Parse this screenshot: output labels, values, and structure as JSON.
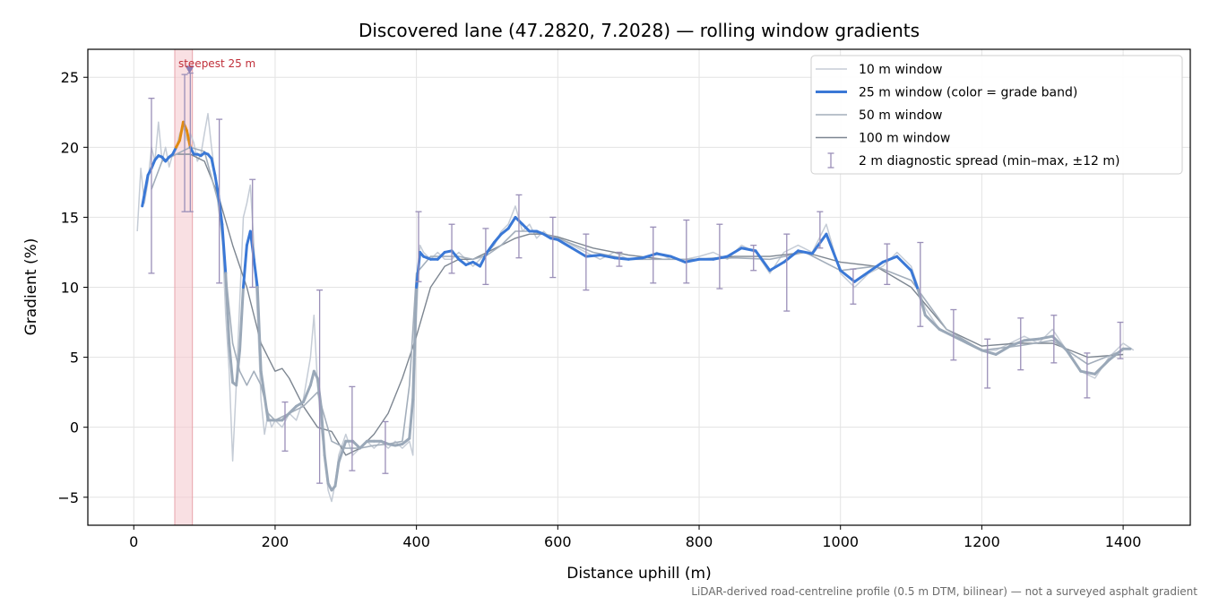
{
  "chart_data": {
    "type": "line",
    "title": "Discovered lane (47.2820, 7.2028) — rolling window gradients",
    "xlabel": "Distance uphill (m)",
    "ylabel": "Gradient (%)",
    "xlim": [
      -65,
      1495
    ],
    "ylim": [
      -7,
      27
    ],
    "x_ticks": [
      0,
      200,
      400,
      600,
      800,
      1000,
      1200,
      1400
    ],
    "y_ticks": [
      -5,
      0,
      5,
      10,
      15,
      20,
      25
    ],
    "x_tick_labels": [
      "0",
      "200",
      "400",
      "600",
      "800",
      "1000",
      "1200",
      "1400"
    ],
    "y_tick_labels": [
      "−5",
      "0",
      "5",
      "10",
      "15",
      "20",
      "25"
    ],
    "grid": true,
    "legend_position": "top-right",
    "footnote": "LiDAR-derived road-centreline profile (0.5 m DTM, bilinear) — not a surveyed asphalt gradient",
    "colors": {
      "w10": "#c5ccd6",
      "w25_blue": "#3a78d6",
      "w25_orange": "#e08a12",
      "w25_gray": "#9aa8b8",
      "w50": "#a3aebb",
      "w100": "#7d8691",
      "errorbar": "#9a8fb8",
      "highlight": "#f4c7cc",
      "annotation": "#c0303a"
    },
    "highlight": {
      "x_start": 58,
      "x_end": 83,
      "label": "steepest 25 m",
      "marker_x": 79,
      "marker_y": 25.5
    },
    "series": [
      {
        "name": "10 m window",
        "key": "w10",
        "x": [
          5,
          10,
          15,
          20,
          25,
          30,
          35,
          40,
          45,
          50,
          55,
          60,
          65,
          70,
          75,
          80,
          85,
          90,
          95,
          100,
          105,
          110,
          115,
          120,
          125,
          130,
          135,
          140,
          145,
          150,
          155,
          160,
          165,
          170,
          175,
          180,
          185,
          190,
          195,
          200,
          210,
          220,
          230,
          240,
          250,
          255,
          260,
          265,
          270,
          275,
          280,
          285,
          290,
          300,
          310,
          320,
          330,
          340,
          350,
          360,
          370,
          380,
          390,
          395,
          400,
          405,
          410,
          420,
          430,
          440,
          450,
          460,
          470,
          480,
          490,
          500,
          510,
          520,
          530,
          540,
          550,
          560,
          570,
          580,
          590,
          600,
          620,
          640,
          660,
          680,
          700,
          720,
          740,
          760,
          780,
          800,
          820,
          840,
          860,
          880,
          900,
          920,
          940,
          960,
          980,
          1000,
          1020,
          1040,
          1060,
          1080,
          1100,
          1110,
          1120,
          1140,
          1160,
          1180,
          1200,
          1220,
          1240,
          1260,
          1280,
          1300,
          1320,
          1340,
          1360,
          1380,
          1400,
          1415
        ],
        "y": [
          14,
          18.5,
          16,
          17.5,
          20,
          19,
          21.8,
          19,
          20,
          18.6,
          19.5,
          20,
          21,
          21.5,
          20.5,
          21,
          20.3,
          19,
          19.5,
          21,
          22.4,
          20,
          18,
          15.5,
          14,
          8,
          4,
          -2.4,
          3,
          9,
          15,
          16,
          17.3,
          13,
          8,
          2,
          -0.5,
          1,
          0,
          0.5,
          0,
          1,
          0.5,
          2,
          5,
          8,
          3,
          0,
          -2,
          -4.5,
          -5.3,
          -4,
          -2,
          -0.5,
          -2,
          -1.5,
          -1,
          -1.5,
          -1,
          -1.5,
          -1,
          -1.5,
          -1,
          -2,
          8,
          13,
          12.5,
          12,
          12.5,
          12,
          12,
          12.5,
          12,
          11.5,
          12,
          12.5,
          13,
          14,
          14.5,
          15.8,
          14,
          14.5,
          13.5,
          14,
          13.5,
          13.6,
          13,
          12.5,
          12,
          12.5,
          12,
          12,
          12.5,
          12,
          12,
          12.2,
          12.5,
          12,
          13,
          12.5,
          11,
          12.5,
          13,
          12.5,
          14.5,
          11,
          10,
          11,
          11.5,
          12.5,
          11.5,
          10,
          8.5,
          7,
          6.5,
          6,
          5.5,
          5.5,
          6,
          6.5,
          6,
          7,
          5.5,
          4,
          3.5,
          5,
          6,
          5.5
        ]
      },
      {
        "name": "25 m window (color = grade band)",
        "key": "w25",
        "x": [
          12,
          20,
          25,
          30,
          35,
          40,
          45,
          50,
          55,
          60,
          65,
          70,
          75,
          80,
          85,
          90,
          95,
          100,
          105,
          110,
          115,
          120,
          125,
          130,
          135,
          140,
          145,
          150,
          155,
          160,
          165,
          170,
          175,
          180,
          190,
          200,
          210,
          220,
          230,
          240,
          250,
          255,
          260,
          265,
          270,
          275,
          280,
          285,
          290,
          300,
          310,
          320,
          330,
          340,
          350,
          360,
          370,
          380,
          390,
          395,
          400,
          405,
          410,
          420,
          430,
          440,
          450,
          460,
          470,
          480,
          490,
          500,
          510,
          520,
          530,
          540,
          550,
          560,
          570,
          580,
          590,
          600,
          620,
          640,
          660,
          680,
          700,
          720,
          740,
          760,
          780,
          800,
          820,
          840,
          860,
          880,
          900,
          920,
          940,
          960,
          980,
          1000,
          1020,
          1040,
          1060,
          1080,
          1100,
          1110,
          1120,
          1140,
          1160,
          1180,
          1200,
          1220,
          1240,
          1260,
          1280,
          1300,
          1320,
          1340,
          1360,
          1380,
          1400,
          1410
        ],
        "y": [
          15.8,
          18,
          18.5,
          19.1,
          19.4,
          19.3,
          19,
          19.3,
          19.5,
          20,
          20.5,
          21.8,
          21.2,
          20,
          19.5,
          19.5,
          19.4,
          19.6,
          19.5,
          19.2,
          18,
          16.5,
          14.5,
          11,
          6,
          3.2,
          3,
          5.5,
          10,
          13,
          14,
          12,
          10,
          4,
          0.5,
          0.5,
          0.5,
          1,
          1.5,
          1.8,
          3,
          4,
          3.5,
          1.5,
          -2,
          -4,
          -4.5,
          -4.2,
          -2.5,
          -1,
          -1,
          -1.5,
          -1,
          -1,
          -1,
          -1.2,
          -1.3,
          -1.2,
          -0.8,
          2,
          10,
          12.5,
          12.2,
          12,
          12,
          12.5,
          12.6,
          12,
          11.6,
          11.8,
          11.5,
          12.5,
          13.2,
          13.8,
          14.2,
          15,
          14.5,
          14,
          14,
          13.8,
          13.5,
          13.4,
          12.8,
          12.2,
          12.3,
          12.1,
          12,
          12.1,
          12.4,
          12.2,
          11.8,
          12,
          12,
          12.2,
          12.8,
          12.6,
          11.2,
          11.8,
          12.6,
          12.4,
          13.8,
          11.2,
          10.4,
          11.1,
          11.8,
          12.2,
          11.2,
          9.8,
          8,
          7,
          6.5,
          6,
          5.5,
          5.2,
          5.8,
          6.2,
          6.3,
          6.5,
          5.5,
          4,
          3.8,
          4.8,
          5.6,
          5.6
        ]
      },
      {
        "name": "50 m window",
        "key": "w50",
        "x": [
          25,
          40,
          60,
          80,
          100,
          120,
          130,
          140,
          150,
          160,
          170,
          180,
          190,
          200,
          220,
          240,
          260,
          280,
          300,
          320,
          340,
          360,
          380,
          390,
          400,
          420,
          440,
          460,
          480,
          500,
          520,
          540,
          560,
          580,
          600,
          650,
          700,
          750,
          800,
          850,
          900,
          950,
          1000,
          1050,
          1100,
          1150,
          1200,
          1250,
          1300,
          1350,
          1400
        ],
        "y": [
          17,
          19,
          19.5,
          20,
          19.7,
          16,
          11,
          6,
          4,
          3,
          4,
          3,
          1,
          0.5,
          1,
          1.5,
          2.5,
          -1,
          -1.5,
          -1.5,
          -1.3,
          -1.2,
          -1,
          3,
          11,
          12.2,
          12.2,
          12.2,
          12,
          12.3,
          13,
          14,
          14,
          13.8,
          13.5,
          12.5,
          12,
          12,
          12,
          12.1,
          12,
          12.5,
          11.2,
          11.5,
          10.5,
          7,
          5.5,
          5.8,
          6.2,
          4.5,
          5.5
        ]
      },
      {
        "name": "100 m window",
        "key": "w100",
        "x": [
          60,
          80,
          100,
          120,
          140,
          160,
          180,
          200,
          210,
          220,
          240,
          260,
          280,
          300,
          320,
          340,
          360,
          380,
          400,
          420,
          440,
          460,
          480,
          500,
          520,
          540,
          560,
          580,
          600,
          650,
          700,
          750,
          800,
          850,
          900,
          950,
          1000,
          1050,
          1100,
          1150,
          1200,
          1250,
          1300,
          1350,
          1400
        ],
        "y": [
          19.5,
          19.5,
          19,
          16.5,
          13,
          10,
          6,
          4,
          4.2,
          3.5,
          1.5,
          0,
          -0.3,
          -2,
          -1.5,
          -0.5,
          1,
          3.5,
          6.5,
          10,
          11.5,
          12,
          12,
          12.5,
          13,
          13.5,
          13.8,
          13.8,
          13.6,
          12.8,
          12.3,
          12,
          12,
          12.2,
          12.2,
          12.5,
          11.8,
          11.5,
          10,
          7,
          5.8,
          6,
          6,
          5,
          5.2
        ]
      }
    ],
    "errorbars_name": "2 m diagnostic spread (min–max, ±12 m)",
    "errorbars": [
      {
        "x": 25,
        "min": 11,
        "max": 23.5
      },
      {
        "x": 72,
        "min": 15.4,
        "max": 25.2
      },
      {
        "x": 80,
        "min": 15.4,
        "max": 25.3
      },
      {
        "x": 121,
        "min": 10.3,
        "max": 22
      },
      {
        "x": 168,
        "min": 10,
        "max": 17.7
      },
      {
        "x": 214,
        "min": -1.7,
        "max": 1.8
      },
      {
        "x": 263,
        "min": -4,
        "max": 9.8
      },
      {
        "x": 309,
        "min": -3.1,
        "max": 2.9
      },
      {
        "x": 356,
        "min": -3.3,
        "max": 0.4
      },
      {
        "x": 403,
        "min": 10.4,
        "max": 15.4
      },
      {
        "x": 450,
        "min": 11,
        "max": 14.5
      },
      {
        "x": 498,
        "min": 10.2,
        "max": 14.2
      },
      {
        "x": 545,
        "min": 12.1,
        "max": 16.6
      },
      {
        "x": 593,
        "min": 10.7,
        "max": 15
      },
      {
        "x": 640,
        "min": 9.8,
        "max": 13.8
      },
      {
        "x": 687,
        "min": 11.5,
        "max": 12.5
      },
      {
        "x": 735,
        "min": 10.3,
        "max": 14.3
      },
      {
        "x": 782,
        "min": 10.3,
        "max": 14.8
      },
      {
        "x": 829,
        "min": 9.9,
        "max": 14.5
      },
      {
        "x": 877,
        "min": 11.2,
        "max": 13
      },
      {
        "x": 924,
        "min": 8.3,
        "max": 13.8
      },
      {
        "x": 971,
        "min": 12.8,
        "max": 15.4
      },
      {
        "x": 1018,
        "min": 8.8,
        "max": 11.3
      },
      {
        "x": 1066,
        "min": 10.2,
        "max": 13.1
      },
      {
        "x": 1113,
        "min": 7.2,
        "max": 13.2
      },
      {
        "x": 1160,
        "min": 4.8,
        "max": 8.4
      },
      {
        "x": 1208,
        "min": 2.8,
        "max": 6.3
      },
      {
        "x": 1255,
        "min": 4.1,
        "max": 7.8
      },
      {
        "x": 1302,
        "min": 4.6,
        "max": 8
      },
      {
        "x": 1349,
        "min": 2.1,
        "max": 5.3
      },
      {
        "x": 1396,
        "min": 4.9,
        "max": 7.5
      }
    ]
  }
}
